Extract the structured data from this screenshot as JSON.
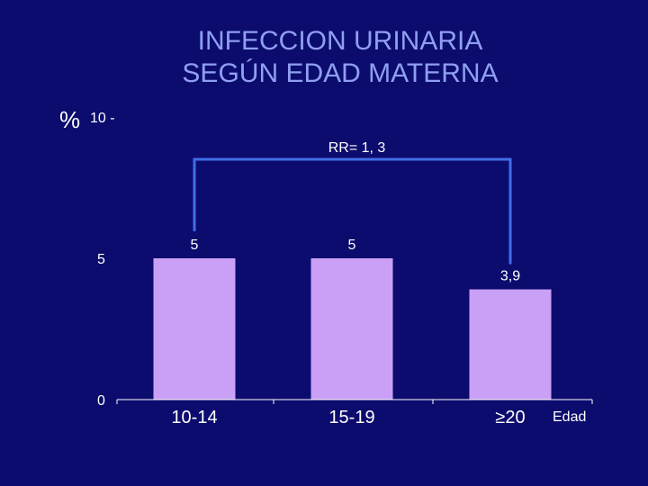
{
  "chart_data": {
    "type": "bar",
    "title": [
      "INFECCION URINARIA",
      "SEGÚN EDAD MATERNA"
    ],
    "ylabel": "%",
    "xlabel": "Edad",
    "ylim": [
      0,
      10
    ],
    "yticks": [
      {
        "value": 10,
        "label": "10 -"
      },
      {
        "value": 5,
        "label": "5"
      },
      {
        "value": 0,
        "label": "0"
      }
    ],
    "categories": [
      "10-14",
      "15-19",
      "≥20"
    ],
    "values": [
      5,
      5,
      3.9
    ],
    "data_labels": [
      "5",
      "5",
      "3,9"
    ],
    "annotation": {
      "text": "RR= 1, 3",
      "from_category": 0,
      "to_category": 2
    },
    "grid": false,
    "legend": "none",
    "colors": {
      "background": "#0c0c6e",
      "bar": "#c9a0f5",
      "title": "#8f9ff0",
      "text": "#ffffff",
      "bracket": "#3f6ee6",
      "axis": "#ffffff"
    }
  }
}
